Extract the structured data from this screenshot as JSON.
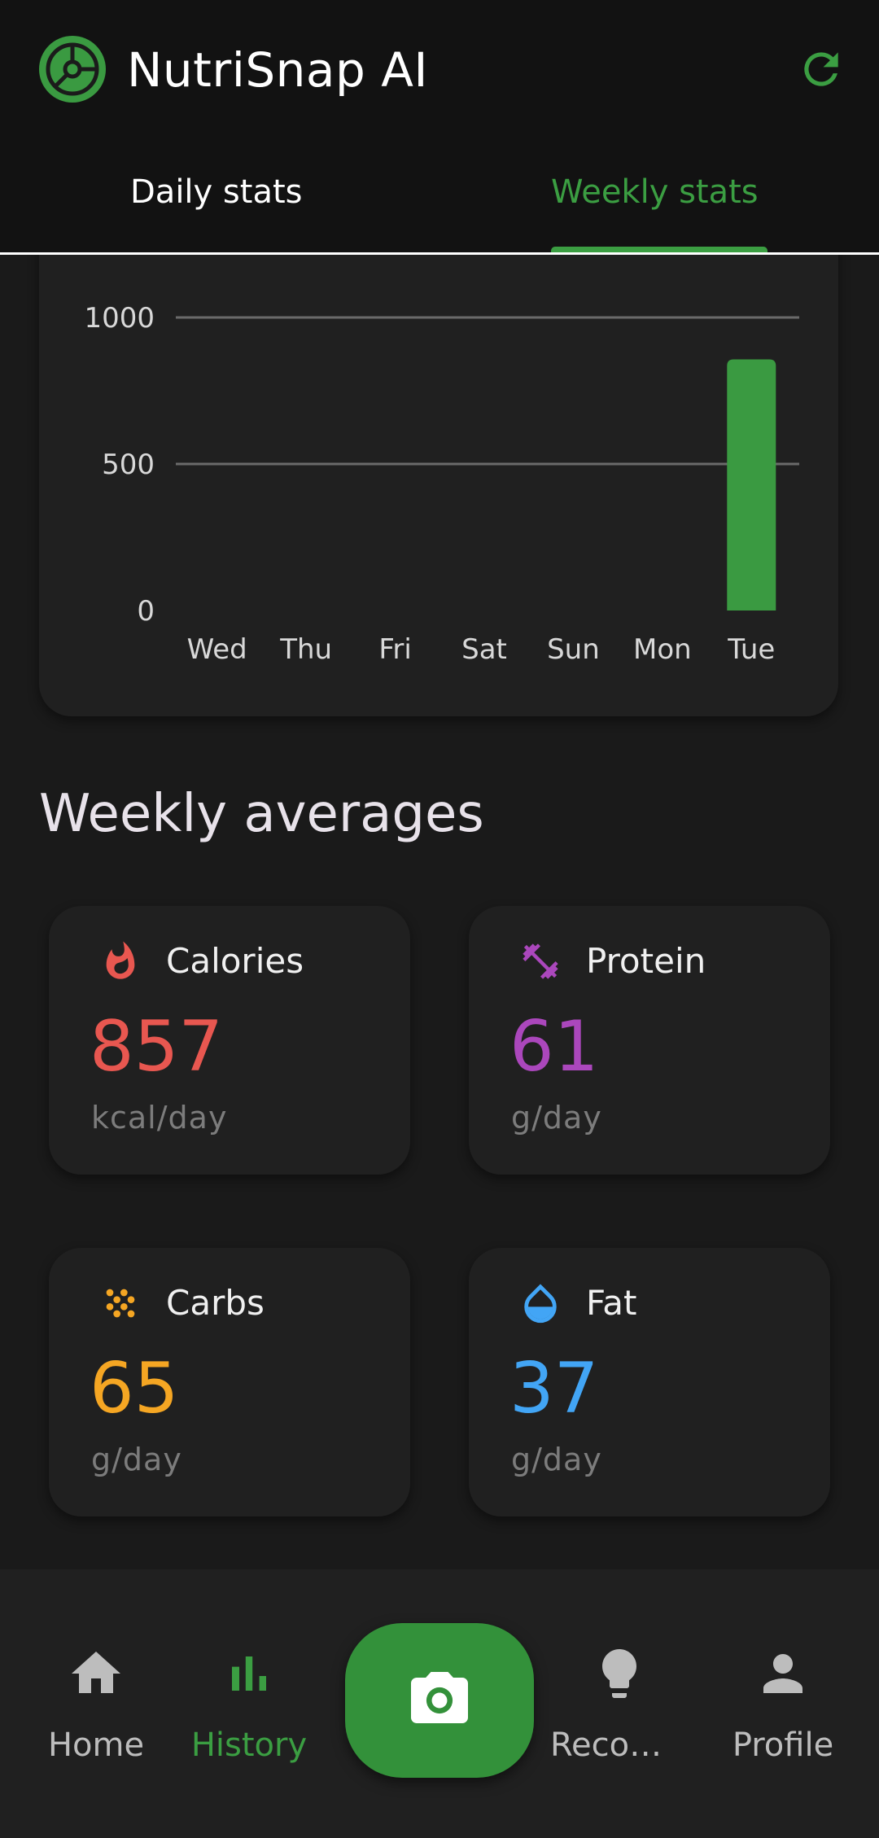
{
  "app": {
    "title": "NutriSnap AI"
  },
  "tabs": [
    {
      "label": "Daily stats",
      "active": false
    },
    {
      "label": "Weekly stats",
      "active": true
    }
  ],
  "chart_data": {
    "type": "bar",
    "categories": [
      "Wed",
      "Thu",
      "Fri",
      "Sat",
      "Sun",
      "Mon",
      "Tue"
    ],
    "values": [
      0,
      0,
      0,
      0,
      0,
      0,
      857
    ],
    "ylim": [
      0,
      1000
    ],
    "yticks": [
      0,
      500,
      1000
    ],
    "ytick_labels": [
      "0",
      "500",
      "1000"
    ],
    "grid": true,
    "bar_color": "#3a9a41"
  },
  "weekly_averages": {
    "title": "Weekly averages",
    "items": [
      {
        "name": "Calories",
        "value": "857",
        "unit": "kcal/day",
        "color": "#e85750",
        "icon": "flame-icon"
      },
      {
        "name": "Protein",
        "value": "61",
        "unit": "g/day",
        "color": "#ab47bc",
        "icon": "dumbbell-icon"
      },
      {
        "name": "Carbs",
        "value": "65",
        "unit": "g/day",
        "color": "#f5a623",
        "icon": "grain-icon"
      },
      {
        "name": "Fat",
        "value": "37",
        "unit": "g/day",
        "color": "#42a5f5",
        "icon": "drop-icon"
      }
    ]
  },
  "nav": {
    "items": [
      {
        "label": "Home",
        "icon": "home-icon",
        "active": false
      },
      {
        "label": "History",
        "icon": "bar-chart-icon",
        "active": true
      },
      {
        "label": "Recom…",
        "icon": "lightbulb-icon",
        "active": false
      },
      {
        "label": "Profile",
        "icon": "person-icon",
        "active": false
      }
    ],
    "camera_icon": "camera-icon"
  },
  "colors": {
    "accent": "#3b9e42",
    "background": "#1a1a1a",
    "card": "#202020"
  }
}
